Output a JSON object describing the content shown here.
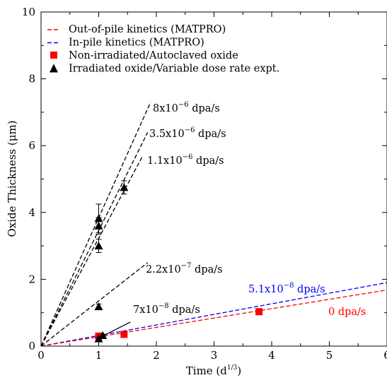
{
  "chart_data": {
    "type": "scatter",
    "xlabel": "Time (d",
    "xlabel_sup": "1/3",
    "xlabel_close": ")",
    "ylabel": "Oxide Thickness (μm)",
    "xlim": [
      0,
      6
    ],
    "ylim": [
      0,
      10
    ],
    "xticks": [
      0,
      1,
      2,
      3,
      4,
      5,
      6
    ],
    "xtick_labels": [
      "0",
      "1",
      "2",
      "3",
      "4",
      "5",
      "6"
    ],
    "yticks": [
      0,
      2,
      4,
      6,
      8,
      10
    ],
    "ytick_labels": [
      "0",
      "2",
      "4",
      "6",
      "8",
      "10"
    ],
    "grid": false,
    "legend_position": "top-left",
    "legend": [
      {
        "label": "Out-of-pile kinetics (MATPRO)",
        "kind": "line",
        "color": "#ff0000"
      },
      {
        "label": "In-pile kinetics (MATPRO)",
        "kind": "line",
        "color": "#0000ff"
      },
      {
        "label": "Non-irradiated/Autoclaved oxide",
        "kind": "square",
        "color": "#ff0000"
      },
      {
        "label": "Irradiated oxide/Variable dose rate expt.",
        "kind": "triangle",
        "color": "#000000"
      }
    ],
    "lines": [
      {
        "label_base": "8x10",
        "label_exp": "−6",
        "label_unit": " dpa/s",
        "color": "#000000",
        "x": [
          0,
          1.9
        ],
        "y": [
          0,
          7.3
        ]
      },
      {
        "label_base": "3.5x10",
        "label_exp": "−6",
        "label_unit": " dpa/s",
        "color": "#000000",
        "x": [
          0,
          1.85
        ],
        "y": [
          0,
          6.4
        ]
      },
      {
        "label_base": "1.1x10",
        "label_exp": "−6",
        "label_unit": " dpa/s",
        "color": "#000000",
        "x": [
          0,
          1.75
        ],
        "y": [
          0,
          5.65
        ]
      },
      {
        "label_base": "2.2x10",
        "label_exp": "−7",
        "label_unit": " dpa/s",
        "color": "#000000",
        "x": [
          0,
          1.85
        ],
        "y": [
          0,
          2.5
        ]
      },
      {
        "label_base": "5.1x10",
        "label_exp": "−8",
        "label_unit": " dpa/s",
        "color": "#0000ff",
        "x": [
          0,
          6
        ],
        "y": [
          0,
          1.9
        ]
      },
      {
        "label_base": "0 dpa/s",
        "label_exp": "",
        "label_unit": "",
        "color": "#ff0000",
        "x": [
          0,
          6
        ],
        "y": [
          0,
          1.68
        ]
      }
    ],
    "annotation_7e8": {
      "label_base": "7x10",
      "label_exp": "−8",
      "label_unit": " dpa/s",
      "arrow_from": [
        1.55,
        0.72
      ],
      "arrow_to": [
        1.07,
        0.3
      ]
    },
    "non_irradiated": [
      {
        "x": 1.0,
        "y": 0.3
      },
      {
        "x": 1.44,
        "y": 0.35
      },
      {
        "x": 3.78,
        "y": 1.03
      }
    ],
    "irradiated": [
      {
        "x": 1.0,
        "y": 3.82,
        "err": 0.43
      },
      {
        "x": 1.0,
        "y": 3.6,
        "err": 0.25
      },
      {
        "x": 1.0,
        "y": 3.0,
        "err": 0.2
      },
      {
        "x": 1.0,
        "y": 1.18,
        "err": 0.08
      },
      {
        "x": 1.0,
        "y": 0.22,
        "err": 0.04
      },
      {
        "x": 1.07,
        "y": 0.32,
        "err": 0.03
      },
      {
        "x": 1.44,
        "y": 4.75,
        "err": 0.2
      }
    ]
  }
}
